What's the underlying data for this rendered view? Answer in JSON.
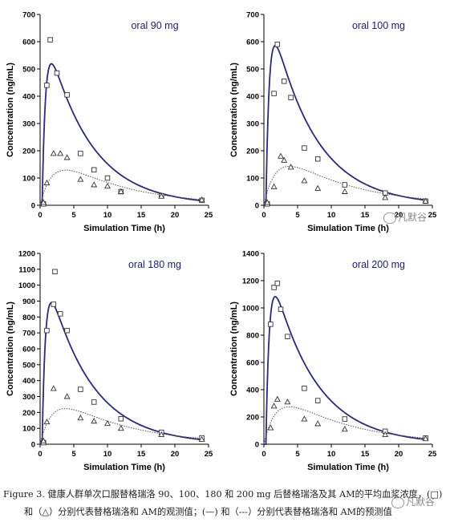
{
  "chart_data": [
    {
      "type": "line",
      "title": "oral 90 mg",
      "xlabel": "Simulation Time (h)",
      "ylabel": "Concentration (ng/mL)",
      "xlim": [
        0,
        25
      ],
      "ylim": [
        0,
        700
      ],
      "xticks": [
        0,
        5,
        10,
        15,
        20,
        25
      ],
      "yticks": [
        0,
        100,
        200,
        300,
        400,
        500,
        600,
        700
      ],
      "parent_params": {
        "A": 700,
        "ka": 2.0,
        "ke": 0.1575,
        "tlag": 0.3
      },
      "metabolite_params": {
        "A": 230,
        "ka": 0.55,
        "ke": 0.1
      },
      "observed_parent": [
        [
          0.5,
          5
        ],
        [
          1,
          440
        ],
        [
          1.5,
          607
        ],
        [
          2.5,
          485
        ],
        [
          4,
          405
        ],
        [
          6,
          190
        ],
        [
          8,
          130
        ],
        [
          10,
          100
        ],
        [
          12,
          50
        ],
        [
          18,
          35
        ],
        [
          24,
          18
        ]
      ],
      "observed_metabolite": [
        [
          0.5,
          10
        ],
        [
          1,
          82
        ],
        [
          2,
          190
        ],
        [
          3,
          190
        ],
        [
          4,
          175
        ],
        [
          6,
          95
        ],
        [
          8,
          75
        ],
        [
          10,
          70
        ],
        [
          12,
          50
        ],
        [
          18,
          33
        ],
        [
          24,
          20
        ]
      ]
    },
    {
      "type": "line",
      "title": "oral 100 mg",
      "xlabel": "Simulation Time (h)",
      "ylabel": "Concentration (ng/mL)",
      "xlim": [
        0,
        25
      ],
      "ylim": [
        0,
        700
      ],
      "xticks": [
        0,
        5,
        10,
        15,
        20,
        25
      ],
      "yticks": [
        0,
        100,
        200,
        300,
        400,
        500,
        600,
        700
      ],
      "parent_params": {
        "A": 790,
        "ka": 2.0,
        "ke": 0.1575,
        "tlag": 0.3
      },
      "metabolite_params": {
        "A": 255,
        "ka": 0.55,
        "ke": 0.1
      },
      "observed_parent": [
        [
          0.5,
          5
        ],
        [
          1.5,
          410
        ],
        [
          2,
          590
        ],
        [
          3,
          455
        ],
        [
          4,
          395
        ],
        [
          6,
          210
        ],
        [
          8,
          170
        ],
        [
          12,
          75
        ],
        [
          18,
          45
        ],
        [
          24,
          15
        ]
      ],
      "observed_metabolite": [
        [
          0.5,
          10
        ],
        [
          1.5,
          68
        ],
        [
          2.5,
          180
        ],
        [
          3,
          165
        ],
        [
          4,
          140
        ],
        [
          6,
          90
        ],
        [
          8,
          62
        ],
        [
          12,
          50
        ],
        [
          18,
          28
        ],
        [
          24,
          15
        ]
      ]
    },
    {
      "type": "line",
      "title": "oral 180 mg",
      "xlabel": "Simulation Time (h)",
      "ylabel": "Concentration (ng/mL)",
      "xlim": [
        0,
        25
      ],
      "ylim": [
        0,
        1200
      ],
      "xticks": [
        0,
        5,
        10,
        15,
        20,
        25
      ],
      "yticks": [
        0,
        100,
        200,
        300,
        400,
        500,
        600,
        700,
        800,
        900,
        1000,
        1100,
        1200
      ],
      "parent_params": {
        "A": 1200,
        "ka": 2.0,
        "ke": 0.1575,
        "tlag": 0.3
      },
      "metabolite_params": {
        "A": 400,
        "ka": 0.55,
        "ke": 0.1
      },
      "observed_parent": [
        [
          0.5,
          10
        ],
        [
          1,
          715
        ],
        [
          2,
          880
        ],
        [
          2.2,
          1085
        ],
        [
          3,
          820
        ],
        [
          4,
          715
        ],
        [
          6,
          345
        ],
        [
          8,
          265
        ],
        [
          12,
          160
        ],
        [
          18,
          75
        ],
        [
          24,
          40
        ]
      ],
      "observed_metabolite": [
        [
          0.5,
          20
        ],
        [
          1,
          140
        ],
        [
          2,
          350
        ],
        [
          4,
          300
        ],
        [
          6,
          165
        ],
        [
          8,
          145
        ],
        [
          10,
          130
        ],
        [
          12,
          100
        ],
        [
          18,
          60
        ],
        [
          24,
          30
        ]
      ]
    },
    {
      "type": "line",
      "title": "oral 200 mg",
      "xlabel": "Simulation Time (h)",
      "ylabel": "Concentration (ng/mL)",
      "xlim": [
        0,
        25
      ],
      "ylim": [
        0,
        1400
      ],
      "xticks": [
        0,
        5,
        10,
        15,
        20,
        25
      ],
      "yticks": [
        0,
        200,
        400,
        600,
        800,
        1000,
        1200,
        1400
      ],
      "parent_params": {
        "A": 1460,
        "ka": 2.0,
        "ke": 0.1575,
        "tlag": 0.3
      },
      "metabolite_params": {
        "A": 490,
        "ka": 0.55,
        "ke": 0.1
      },
      "observed_parent": [
        [
          1,
          880
        ],
        [
          1.5,
          1150
        ],
        [
          2,
          1180
        ],
        [
          2.5,
          990
        ],
        [
          3.5,
          790
        ],
        [
          6,
          410
        ],
        [
          8,
          320
        ],
        [
          12,
          185
        ],
        [
          18,
          95
        ],
        [
          24,
          45
        ]
      ],
      "observed_metabolite": [
        [
          1,
          120
        ],
        [
          1.5,
          280
        ],
        [
          2,
          330
        ],
        [
          3.5,
          310
        ],
        [
          6,
          185
        ],
        [
          8,
          150
        ],
        [
          12,
          110
        ],
        [
          18,
          70
        ],
        [
          24,
          40
        ]
      ]
    }
  ],
  "colors": {
    "parent_line": "#2b2a7a",
    "metabolite_line": "#555555",
    "markers": "#333333"
  },
  "caption": {
    "line1": "Figure 3. 健康人群单次口服替格瑞洛 90、100、180 和 200 mg 后替格瑞洛及其 AM的平均血浆浓度，(□)",
    "line2": "和（△）分别代表替格瑞洛和 AM的观测值；(—) 和（---）分别代表替格瑞洛和 AM的预测值"
  },
  "watermarks": {
    "text": "凡默谷"
  }
}
